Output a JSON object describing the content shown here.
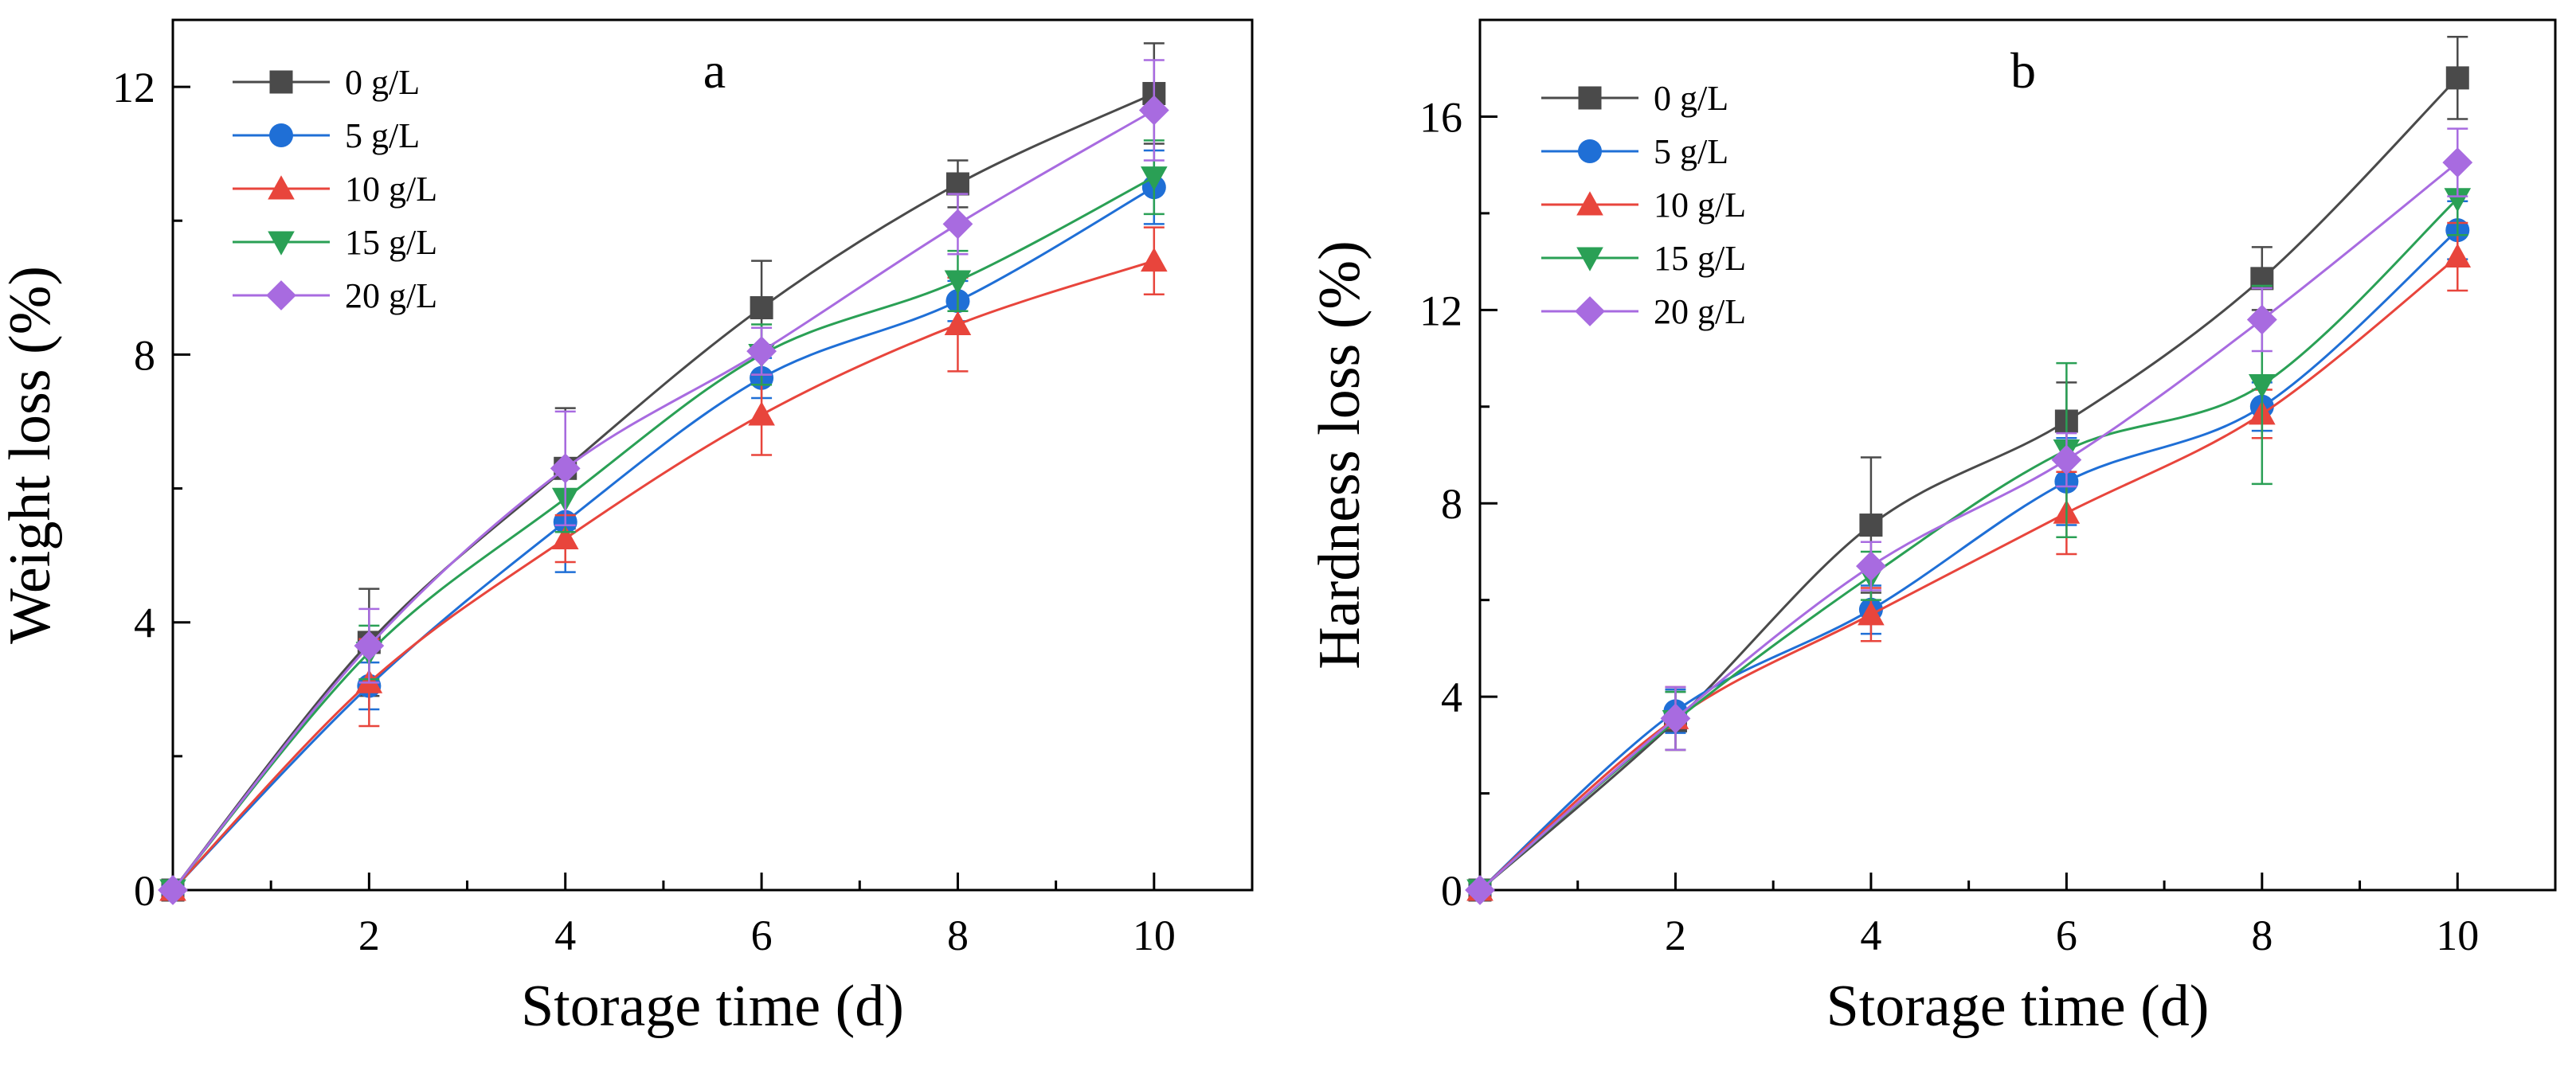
{
  "chart_data": [
    {
      "type": "line",
      "panel_label": "a",
      "xlabel": "Storage time (d)",
      "ylabel": "Weight loss (%)",
      "xlim": [
        0,
        11
      ],
      "ylim": [
        0,
        13
      ],
      "x_ticks": [
        2,
        4,
        6,
        8,
        10
      ],
      "x_tick_labels": [
        "2",
        "4",
        "6",
        "8",
        "10"
      ],
      "y_ticks": [
        0,
        4,
        8,
        12
      ],
      "y_tick_labels": [
        "0",
        "4",
        "8",
        "12"
      ],
      "legend_position": "top-left",
      "x": [
        0,
        2,
        4,
        6,
        8,
        10
      ],
      "series": [
        {
          "name": "0 g/L",
          "color": "#4a4a4a",
          "marker": "square",
          "values": [
            0,
            3.7,
            6.3,
            8.7,
            10.55,
            11.9
          ],
          "errors": [
            0,
            0.8,
            0.9,
            0.7,
            0.35,
            0.75
          ]
        },
        {
          "name": "5 g/L",
          "color": "#1f6fd6",
          "marker": "circle",
          "values": [
            0,
            3.05,
            5.5,
            7.65,
            8.8,
            10.5
          ],
          "errors": [
            0,
            0.35,
            0.75,
            0.3,
            0.3,
            0.55
          ]
        },
        {
          "name": "10 g/L",
          "color": "#e8453c",
          "marker": "triangle-up",
          "values": [
            0,
            3.1,
            5.25,
            7.1,
            8.45,
            9.4
          ],
          "errors": [
            0,
            0.65,
            0.35,
            0.6,
            0.7,
            0.5
          ]
        },
        {
          "name": "15 g/L",
          "color": "#2aa055",
          "marker": "triangle-down",
          "values": [
            0,
            3.55,
            5.85,
            8.0,
            9.1,
            10.65
          ],
          "errors": [
            0,
            0.4,
            0.5,
            0.45,
            0.45,
            0.55
          ]
        },
        {
          "name": "20 g/L",
          "color": "#a86be0",
          "marker": "diamond",
          "values": [
            0,
            3.65,
            6.3,
            8.05,
            9.95,
            11.65
          ],
          "errors": [
            0,
            0.55,
            0.85,
            0.35,
            0.45,
            0.75
          ]
        }
      ]
    },
    {
      "type": "line",
      "panel_label": "b",
      "xlabel": "Storage time (d)",
      "ylabel": "Hardness loss (%)",
      "xlim": [
        0,
        11
      ],
      "ylim": [
        0,
        18
      ],
      "x_ticks": [
        2,
        4,
        6,
        8,
        10
      ],
      "x_tick_labels": [
        "2",
        "4",
        "6",
        "8",
        "10"
      ],
      "y_ticks": [
        0,
        4,
        8,
        12,
        16
      ],
      "y_tick_labels": [
        "0",
        "4",
        "8",
        "12",
        "16"
      ],
      "legend_position": "top-left",
      "x": [
        0,
        2,
        4,
        6,
        8,
        10
      ],
      "series": [
        {
          "name": "0 g/L",
          "color": "#4a4a4a",
          "marker": "square",
          "values": [
            0,
            3.5,
            7.55,
            9.7,
            12.65,
            16.8
          ],
          "errors": [
            0,
            0.6,
            1.4,
            0.8,
            0.65,
            0.85
          ]
        },
        {
          "name": "5 g/L",
          "color": "#1f6fd6",
          "marker": "circle",
          "values": [
            0,
            3.7,
            5.8,
            8.45,
            10.0,
            13.65
          ],
          "errors": [
            0,
            0.45,
            0.5,
            0.9,
            0.5,
            0.6
          ]
        },
        {
          "name": "10 g/L",
          "color": "#e8453c",
          "marker": "triangle-up",
          "values": [
            0,
            3.55,
            5.7,
            7.8,
            9.85,
            13.1
          ],
          "errors": [
            0,
            0.65,
            0.55,
            0.85,
            0.5,
            0.7
          ]
        },
        {
          "name": "15 g/L",
          "color": "#2aa055",
          "marker": "triangle-down",
          "values": [
            0,
            3.5,
            6.5,
            9.1,
            10.45,
            14.3
          ],
          "errors": [
            0,
            0.6,
            0.5,
            1.8,
            2.05,
            0.75
          ]
        },
        {
          "name": "20 g/L",
          "color": "#a86be0",
          "marker": "diamond",
          "values": [
            0,
            3.55,
            6.7,
            8.9,
            11.8,
            15.05
          ],
          "errors": [
            0,
            0.65,
            0.5,
            0.55,
            0.65,
            0.7
          ]
        }
      ]
    }
  ]
}
